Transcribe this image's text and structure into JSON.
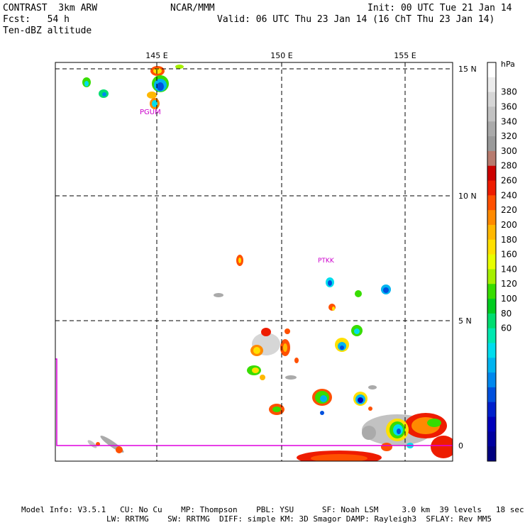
{
  "header": {
    "model": "CONTRAST  3km ARW",
    "center": "NCAR/MMM",
    "init": "Init: 00 UTC Tue 21 Jan 14",
    "fcst": "Fcst:   54 h",
    "valid": "Valid: 06 UTC Thu 23 Jan 14 (16 ChT Thu 23 Jan 14)",
    "field": "Ten-dBZ altitude"
  },
  "map": {
    "lon_labels": [
      "145 E",
      "150 E",
      "155 E"
    ],
    "lat_labels": [
      "15 N",
      "10 N",
      "5 N",
      "0"
    ],
    "stations": [
      {
        "label": "PGUM",
        "lon": 144.8,
        "lat": 13.5,
        "color": "#cc00cc"
      },
      {
        "label": "PTKK",
        "lon": 151.8,
        "lat": 7.4,
        "color": "#cc00cc"
      }
    ],
    "boundary_color": "#e000e0",
    "grid_style": "dashed"
  },
  "colorbar": {
    "unit": "hPa",
    "levels": [
      "380",
      "360",
      "340",
      "320",
      "300",
      "280",
      "260",
      "240",
      "220",
      "200",
      "180",
      "160",
      "140",
      "120",
      "100",
      "80",
      "60"
    ],
    "colors": [
      "#ffffff",
      "#ececec",
      "#d6d6d6",
      "#c2c2c2",
      "#aaaaaa",
      "#9a9a9a",
      "#b77b6f",
      "#cc0000",
      "#ee1c00",
      "#ff5000",
      "#ff8a00",
      "#ffb800",
      "#ffe000",
      "#e8ff00",
      "#a6f000",
      "#38dd00",
      "#00cc20",
      "#00dd70",
      "#00e8b0",
      "#00ddee",
      "#00b4f0",
      "#0088ee",
      "#0050dd",
      "#0020cc",
      "#0000bb",
      "#0000a0",
      "#000080"
    ]
  },
  "footer": {
    "line1": "Model Info: V3.5.1   CU: No Cu    MP: Thompson    PBL: YSU      SF: Noah LSM     3.0 km  39 levels   18 sec",
    "line2": "LW: RRTMG    SW: RRTMG  DIFF: simple KM: 3D Smagor DAMP: Rayleigh3  SFLAY: Rev MM5"
  }
}
